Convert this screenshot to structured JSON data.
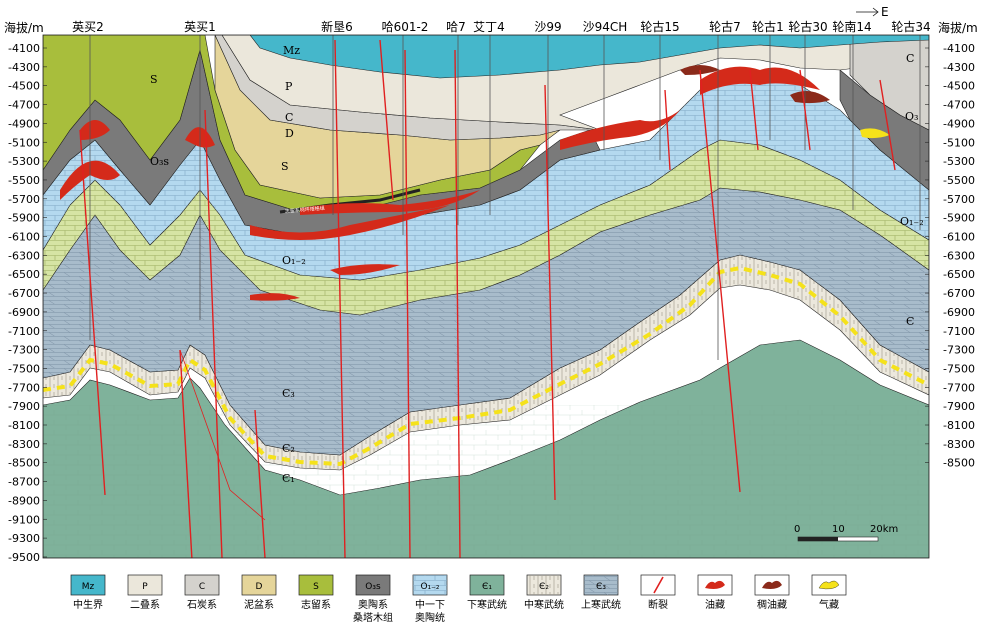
{
  "axis": {
    "label_left": "海拔/m",
    "label_right": "海拔/m",
    "left_ticks": [
      "-4100",
      "-4300",
      "-4500",
      "-4700",
      "-4900",
      "-5100",
      "-5300",
      "-5500",
      "-5700",
      "-5900",
      "-6100",
      "-6300",
      "-6500",
      "-6700",
      "-6900",
      "-7100",
      "-7300",
      "-7500",
      "-7700",
      "-7900",
      "-8100",
      "-8300",
      "-8500",
      "-8700",
      "-8900",
      "-9100",
      "-9300",
      "-9500"
    ],
    "right_ticks": [
      "-4100",
      "-4300",
      "-4500",
      "-4700",
      "-4900",
      "-5100",
      "-5300",
      "-5500",
      "-5700",
      "-5900",
      "-6100",
      "-6300",
      "-6500",
      "-6700",
      "-6900",
      "-7100",
      "-7300",
      "-7500",
      "-7700",
      "-7900",
      "-8100",
      "-8300",
      "-8500"
    ],
    "direction": "E"
  },
  "wells": [
    "英买2",
    "英买1",
    "新垦6",
    "哈601-2",
    "哈7",
    "艾丁4",
    "沙99",
    "沙94CH",
    "轮古15",
    "轮古7",
    "轮古1",
    "轮古30",
    "轮南14",
    "轮古34"
  ],
  "formation_labels": {
    "mz": "Mz",
    "p": "P",
    "c": "C",
    "d": "D",
    "s_left": "S",
    "s_mid": "S",
    "o3s": "O₃s",
    "o12_mid": "O₁₋₂",
    "o12_right": "O₁₋₂",
    "o3_right": "O₃",
    "c_right_top": "C",
    "cam3": "Є₃",
    "cam2": "Є₂",
    "cam1": "Є₁",
    "cam_right": "Є",
    "thin_layer": "志留系柯坪塔格组"
  },
  "scale": {
    "ticks": [
      "0",
      "10",
      "20km"
    ]
  },
  "legend": [
    {
      "code": "Mz",
      "label": "中生界",
      "label2": "",
      "color": "#45b7cb",
      "pattern": "plain"
    },
    {
      "code": "P",
      "label": "二叠系",
      "label2": "",
      "color": "#ebe7db",
      "pattern": "plain"
    },
    {
      "code": "C",
      "label": "石炭系",
      "label2": "",
      "color": "#d4d2cd",
      "pattern": "plain"
    },
    {
      "code": "D",
      "label": "泥盆系",
      "label2": "",
      "color": "#e5d59a",
      "pattern": "plain"
    },
    {
      "code": "S",
      "label": "志留系",
      "label2": "",
      "color": "#a8be3c",
      "pattern": "plain"
    },
    {
      "code": "O₃s",
      "label": "奥陶系",
      "label2": "桑塔木组",
      "color": "#7a7a7a",
      "pattern": "plain"
    },
    {
      "code": "O₁₋₂",
      "label": "中一下",
      "label2": "奥陶统",
      "color": "#b4d9ef",
      "pattern": "brick"
    },
    {
      "code": "Є₁",
      "label": "下寒武统",
      "label2": "",
      "color": "#7fb29b",
      "pattern": "plain"
    },
    {
      "code": "Є₂",
      "label": "中寒武统",
      "label2": "",
      "color": "#ece8dd",
      "pattern": "vert"
    },
    {
      "code": "Є₃",
      "label": "上寒武统",
      "label2": "",
      "color": "#a8bccb",
      "pattern": "diag"
    },
    {
      "code": "",
      "label": "断裂",
      "label2": "",
      "color": "#ffffff",
      "pattern": "fault"
    },
    {
      "code": "",
      "label": "油藏",
      "label2": "",
      "color": "#ffffff",
      "pattern": "oil"
    },
    {
      "code": "",
      "label": "稠油藏",
      "label2": "",
      "color": "#ffffff",
      "pattern": "heavy"
    },
    {
      "code": "",
      "label": "气藏",
      "label2": "",
      "color": "#ffffff",
      "pattern": "gas"
    }
  ],
  "colors": {
    "mz": "#45b7cb",
    "p": "#ebe7db",
    "c": "#d4d2cd",
    "d": "#e5d59a",
    "s": "#a8be3c",
    "o3s": "#7a7a7a",
    "o12": "#b4d9ef",
    "ogreen": "#d6e4a4",
    "cam3": "#a8bccb",
    "cam2": "#ece8dd",
    "cam1": "#7fb29b",
    "fault": "#e02020",
    "oil": "#d42a1a",
    "heavy": "#8b2a1a",
    "gas": "#f5e21a"
  }
}
